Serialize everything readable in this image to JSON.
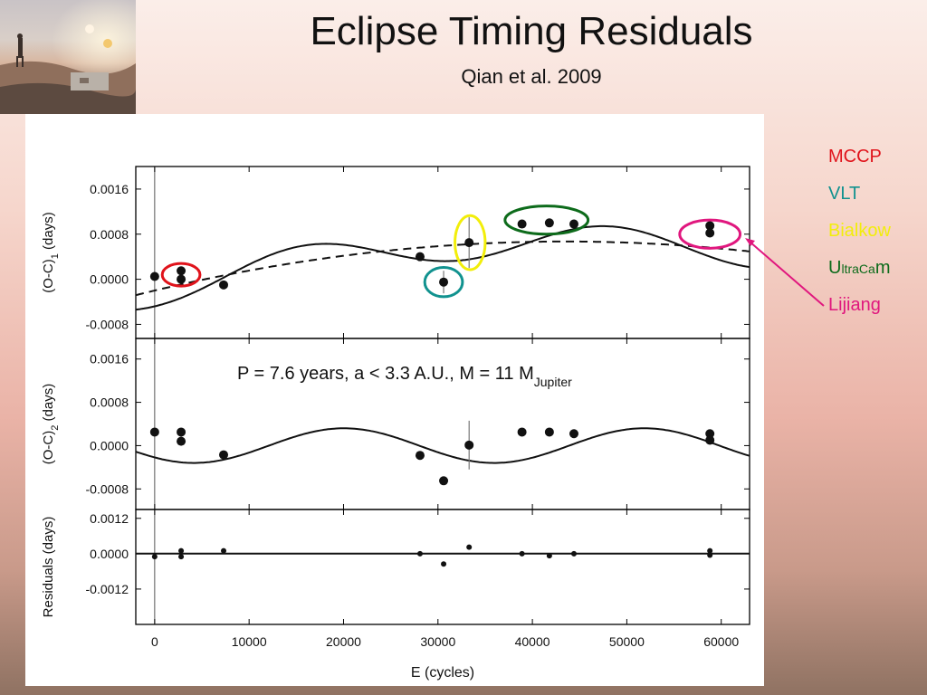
{
  "slide": {
    "title": "Eclipse Timing Residuals",
    "subtitle": "Qian et al. 2009"
  },
  "legend": {
    "items": [
      {
        "label": "MCCP",
        "color": "#e0131b"
      },
      {
        "label": "VLT",
        "color": "#11928f"
      },
      {
        "label": "Bialkow",
        "color": "#f2ee0a"
      },
      {
        "label": "UltraCam",
        "color": "#0d6b1b"
      },
      {
        "label": "Lijiang",
        "color": "#e0177e"
      }
    ]
  },
  "chart_data": {
    "type": "scatter",
    "xlabel": "E (cycles)",
    "xlim": [
      -2000,
      63000
    ],
    "xticks": [
      0,
      10000,
      20000,
      30000,
      40000,
      50000,
      60000
    ],
    "annotation": "P = 7.6 years, a < 3.3 A.U., M = 11 M",
    "annotation_sub": "Jupiter",
    "panels": [
      {
        "name": "oc1",
        "ylabel": "(O-C)",
        "ylabel_sub": "1",
        "ylabel_suffix": " (days)",
        "ylim": [
          -0.00105,
          0.002
        ],
        "yticks": [
          -0.0008,
          0.0,
          0.0008,
          0.0016
        ],
        "ytick_labels": [
          "-0.0008",
          "0.0000",
          "0.0008",
          "0.0016"
        ],
        "points": [
          {
            "x": 0,
            "y": 5e-05,
            "err": 0
          },
          {
            "x": 2800,
            "y": 0.00015,
            "err": 0
          },
          {
            "x": 2800,
            "y": 0.0,
            "err": 0
          },
          {
            "x": 7300,
            "y": -0.0001,
            "err": 0
          },
          {
            "x": 28100,
            "y": 0.0004,
            "err": 0
          },
          {
            "x": 30600,
            "y": -5e-05,
            "err": 0.0002
          },
          {
            "x": 33300,
            "y": 0.00065,
            "err": 0.00045
          },
          {
            "x": 38900,
            "y": 0.00098,
            "err": 0
          },
          {
            "x": 41800,
            "y": 0.001,
            "err": 0
          },
          {
            "x": 44400,
            "y": 0.00098,
            "err": 0
          },
          {
            "x": 58800,
            "y": 0.00095,
            "err": 0
          },
          {
            "x": 58800,
            "y": 0.00082,
            "err": 0
          }
        ],
        "fits": [
          {
            "name": "quadratic",
            "style": "dashed",
            "a": -0.0002,
            "b": 4e-08,
            "c": -4.6e-13
          },
          {
            "name": "quadratic + cyclic",
            "style": "solid",
            "a": -0.0002,
            "b": 4e-08,
            "c": -4.6e-13,
            "amp": 0.00028,
            "period": 31800,
            "phase_x": 8000
          }
        ],
        "markers": [
          {
            "legend": "MCCP",
            "cx": 2800,
            "cy": 8e-05,
            "rx": 2000,
            "ry": 0.0002
          },
          {
            "legend": "VLT",
            "cx": 30600,
            "cy": -5e-05,
            "rx": 2000,
            "ry": 0.00026
          },
          {
            "legend": "Bialkow",
            "cx": 33400,
            "cy": 0.00065,
            "rx": 1600,
            "ry": 0.00048
          },
          {
            "legend": "UltraCam",
            "cx": 41500,
            "cy": 0.00105,
            "rx": 4400,
            "ry": 0.00025
          },
          {
            "legend": "Lijiang",
            "cx": 58800,
            "cy": 0.0008,
            "rx": 3200,
            "ry": 0.00025
          }
        ]
      },
      {
        "name": "oc2",
        "ylabel": "(O-C)",
        "ylabel_sub": "2",
        "ylabel_suffix": " (days)",
        "ylim": [
          -0.00118,
          0.00198
        ],
        "yticks": [
          -0.0008,
          0.0,
          0.0008,
          0.0016
        ],
        "ytick_labels": [
          "-0.0008",
          "0.0000",
          "0.0008",
          "0.0016"
        ],
        "points": [
          {
            "x": 0,
            "y": 0.00025,
            "err": 0
          },
          {
            "x": 2800,
            "y": 0.00025,
            "err": 0
          },
          {
            "x": 2800,
            "y": 8e-05,
            "err": 0
          },
          {
            "x": 7300,
            "y": -0.00017,
            "err": 0
          },
          {
            "x": 28100,
            "y": -0.00018,
            "err": 0
          },
          {
            "x": 30600,
            "y": -0.00065,
            "err": 0
          },
          {
            "x": 33300,
            "y": 1e-05,
            "err": 0.00045
          },
          {
            "x": 38900,
            "y": 0.00025,
            "err": 0
          },
          {
            "x": 41800,
            "y": 0.00025,
            "err": 0
          },
          {
            "x": 44400,
            "y": 0.00022,
            "err": 0
          },
          {
            "x": 58800,
            "y": 0.00022,
            "err": 0
          },
          {
            "x": 58800,
            "y": 0.0001,
            "err": 0
          }
        ],
        "fits": [
          {
            "name": "cyclic",
            "style": "solid",
            "a": 0.0,
            "b": 0.0,
            "c": 0.0,
            "amp": 0.00032,
            "period": 31800,
            "phase_x": 12100
          }
        ]
      },
      {
        "name": "residuals",
        "ylabel": "Residuals (days)",
        "ylabel_sub": "",
        "ylabel_suffix": "",
        "ylim": [
          -0.0024,
          0.0015
        ],
        "yticks": [
          -0.0012,
          0.0,
          0.0012
        ],
        "ytick_labels": [
          "-0.0012",
          "0.0000",
          "0.0012"
        ],
        "points": [
          {
            "x": 0,
            "y": -0.0001,
            "err": 0
          },
          {
            "x": 2800,
            "y": 0.0001,
            "err": 0
          },
          {
            "x": 2800,
            "y": -0.0001,
            "err": 0
          },
          {
            "x": 7300,
            "y": 0.0001,
            "err": 0
          },
          {
            "x": 28100,
            "y": 0.0,
            "err": 0
          },
          {
            "x": 30600,
            "y": -0.00035,
            "err": 0
          },
          {
            "x": 33300,
            "y": 0.00022,
            "err": 0
          },
          {
            "x": 38900,
            "y": 0.0,
            "err": 0
          },
          {
            "x": 41800,
            "y": -7e-05,
            "err": 0
          },
          {
            "x": 44400,
            "y": 0.0,
            "err": 0
          },
          {
            "x": 58800,
            "y": 0.0001,
            "err": 0
          },
          {
            "x": 58800,
            "y": -5e-05,
            "err": 0
          }
        ],
        "fits": [
          {
            "name": "zero",
            "style": "solid",
            "a": 0.0,
            "b": 0.0,
            "c": 0.0
          }
        ]
      }
    ]
  }
}
